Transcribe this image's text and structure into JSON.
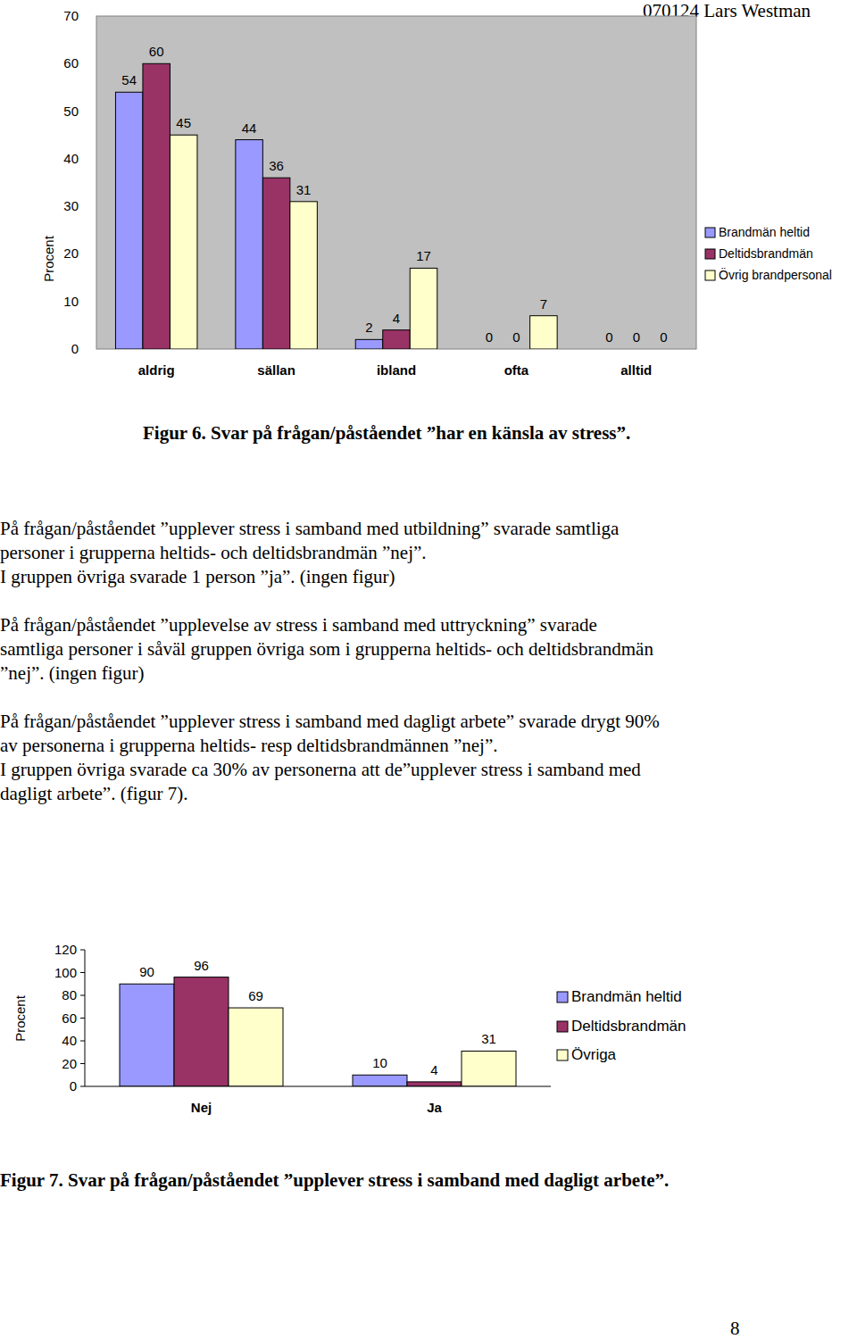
{
  "header": {
    "text": "070124  Lars Westman"
  },
  "chart_data": [
    {
      "type": "bar",
      "ylabel": "Procent",
      "categories": [
        "aldrig",
        "sällan",
        "ibland",
        "ofta",
        "alltid"
      ],
      "series": [
        {
          "name": "Brandmän heltid",
          "color": "#9999ff",
          "values": [
            54,
            44,
            2,
            0,
            0
          ]
        },
        {
          "name": "Deltidsbrandmän",
          "color": "#993366",
          "values": [
            60,
            36,
            4,
            0,
            0
          ]
        },
        {
          "name": "Övrig brandpersonal",
          "color": "#ffffcc",
          "values": [
            45,
            31,
            17,
            7,
            0
          ]
        }
      ],
      "ylim": [
        0,
        70
      ],
      "yticks": [
        0,
        10,
        20,
        30,
        40,
        50,
        60,
        70
      ],
      "grid": false,
      "legend": "right",
      "data_labels": true
    },
    {
      "type": "bar",
      "ylabel": "Procent",
      "categories": [
        "Nej",
        "Ja"
      ],
      "series": [
        {
          "name": "Brandmän heltid",
          "color": "#9999ff",
          "values": [
            90,
            10
          ]
        },
        {
          "name": "Deltidsbrandmän",
          "color": "#993366",
          "values": [
            96,
            4
          ]
        },
        {
          "name": "Övriga",
          "color": "#ffffcc",
          "values": [
            69,
            31
          ]
        }
      ],
      "ylim": [
        0,
        120
      ],
      "yticks": [
        0,
        20,
        40,
        60,
        80,
        100,
        120
      ],
      "grid": false,
      "legend": "right",
      "data_labels": true
    }
  ],
  "captions": [
    "Figur 6. Svar på frågan/påståendet ”har en känsla av stress”.",
    "Figur 7. Svar på frågan/påståendet ”upplever stress i samband med dagligt arbete”."
  ],
  "paragraphs": [
    [
      "På frågan/påståendet ”upplever stress i samband med utbildning” svarade samtliga",
      "personer i grupperna heltids- och deltidsbrandmän ”nej”.",
      "I gruppen övriga svarade 1 person ”ja”. (ingen figur)"
    ],
    [
      "På frågan/påståendet ”upplevelse av stress i samband med uttryckning” svarade",
      "samtliga personer i såväl gruppen övriga som i grupperna heltids- och deltidsbrandmän",
      "”nej”. (ingen figur)"
    ],
    [
      "På frågan/påståendet ”upplever stress i samband med dagligt arbete” svarade drygt 90%",
      "av personerna i grupperna heltids- resp deltidsbrandmännen ”nej”.",
      "I gruppen övriga svarade ca 30% av personerna att de”upplever stress i samband med",
      "dagligt arbete”. (figur 7)."
    ]
  ],
  "page_number": "8"
}
